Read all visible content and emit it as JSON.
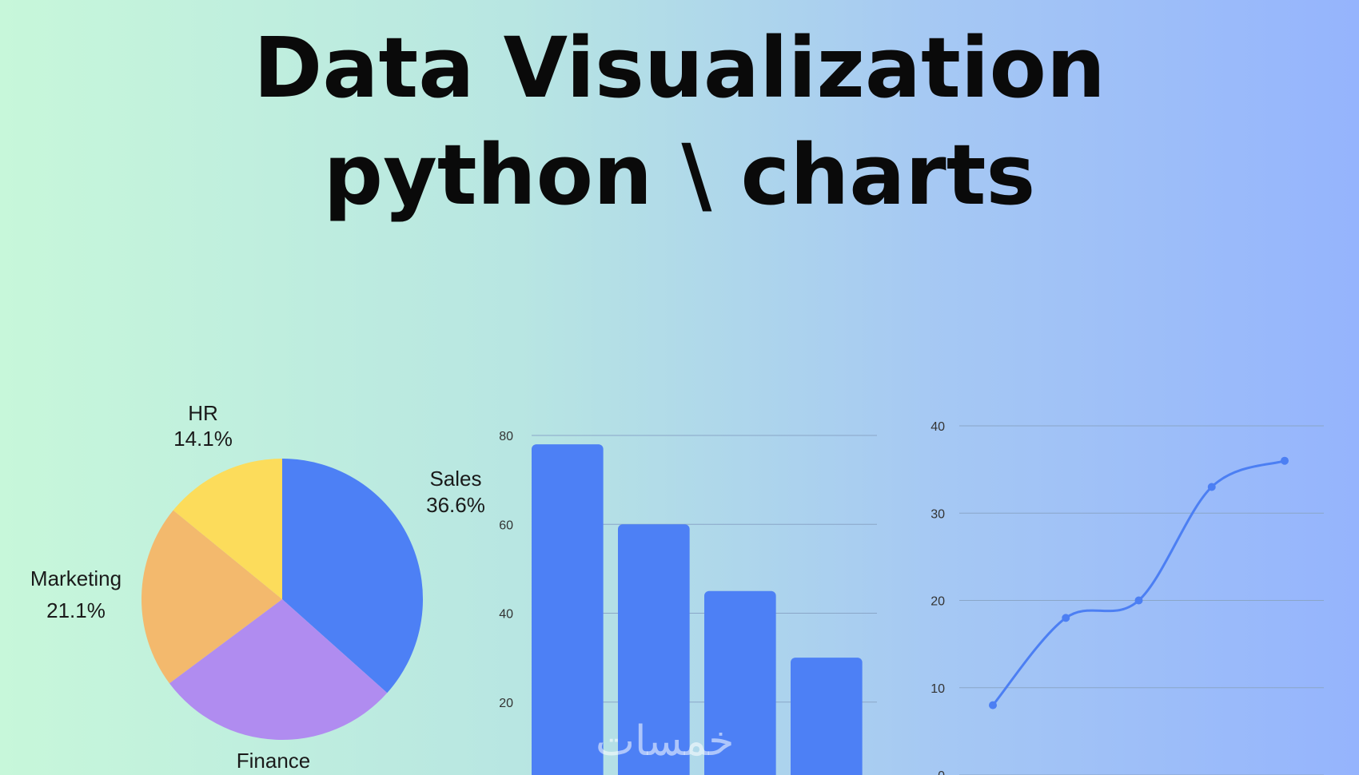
{
  "title": {
    "line1": "Data Visualization",
    "line2": "python \\ charts"
  },
  "watermark": "خمسات",
  "colors": {
    "blue": "#4d80f5",
    "purple": "#b08cf0",
    "orange": "#f3b96d",
    "yellow": "#fcdc5b",
    "line": "#4c7ff3",
    "grid": "#8aa6c8"
  },
  "chart_data": [
    {
      "type": "pie",
      "slices": [
        {
          "label": "Sales",
          "value": 36.6,
          "pct_label": "36.6%",
          "color": "#4d80f5"
        },
        {
          "label": "Finance",
          "value": 28.2,
          "pct_label": "",
          "color": "#b08cf0"
        },
        {
          "label": "Marketing",
          "value": 21.1,
          "pct_label": "21.1%",
          "color": "#f3b96d"
        },
        {
          "label": "HR",
          "value": 14.1,
          "pct_label": "14.1%",
          "color": "#fcdc5b"
        }
      ]
    },
    {
      "type": "bar",
      "values": [
        78,
        60,
        45,
        30
      ],
      "yticks": [
        20,
        40,
        60,
        80
      ],
      "ylim": [
        0,
        80
      ],
      "color": "#4d80f5",
      "grid": true
    },
    {
      "type": "line",
      "x": [
        1,
        2,
        3,
        4,
        5
      ],
      "y": [
        8,
        18,
        20,
        33,
        36
      ],
      "yticks": [
        0,
        10,
        20,
        30,
        40
      ],
      "ylim": [
        0,
        40
      ],
      "color": "#4c7ff3",
      "grid": true,
      "smooth": true
    }
  ]
}
